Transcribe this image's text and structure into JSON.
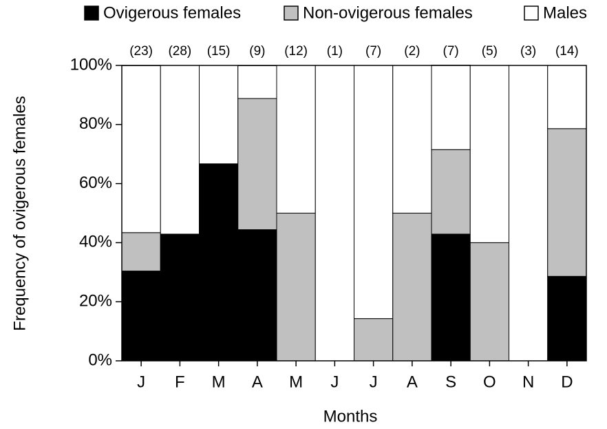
{
  "chart_data": {
    "type": "stacked_bar",
    "y_label": "Frequency of ovigerous females",
    "x_label": "Months",
    "categories": [
      "J",
      "F",
      "M",
      "A",
      "M",
      "J",
      "J",
      "A",
      "S",
      "O",
      "N",
      "D"
    ],
    "annotations": [
      "(23)",
      "(28)",
      "(15)",
      "(9)",
      "(12)",
      "(1)",
      "(7)",
      "(2)",
      "(7)",
      "(5)",
      "(3)",
      "(14)"
    ],
    "series": [
      {
        "name": "Ovigerous females",
        "color": "#000000",
        "values": [
          30.4,
          42.9,
          66.7,
          44.4,
          0,
          0,
          0,
          0,
          42.9,
          0,
          0,
          28.6
        ]
      },
      {
        "name": "Non-ovigerous females",
        "color": "#c0c0c0",
        "values": [
          13.0,
          0,
          0,
          44.4,
          50,
          0,
          14.3,
          50,
          28.6,
          40,
          0,
          50
        ]
      },
      {
        "name": "Males",
        "color": "#ffffff",
        "values": [
          56.5,
          57.1,
          33.3,
          11.1,
          50,
          100,
          85.7,
          50,
          28.6,
          60,
          100,
          21.4
        ]
      }
    ],
    "ylim": [
      0,
      100
    ],
    "yticks": [
      {
        "value": 0,
        "label": "0%"
      },
      {
        "value": 20,
        "label": "20%"
      },
      {
        "value": 40,
        "label": "40%"
      },
      {
        "value": 60,
        "label": "60%"
      },
      {
        "value": 80,
        "label": "80%"
      },
      {
        "value": 100,
        "label": "100%"
      }
    ],
    "legend": "top"
  }
}
